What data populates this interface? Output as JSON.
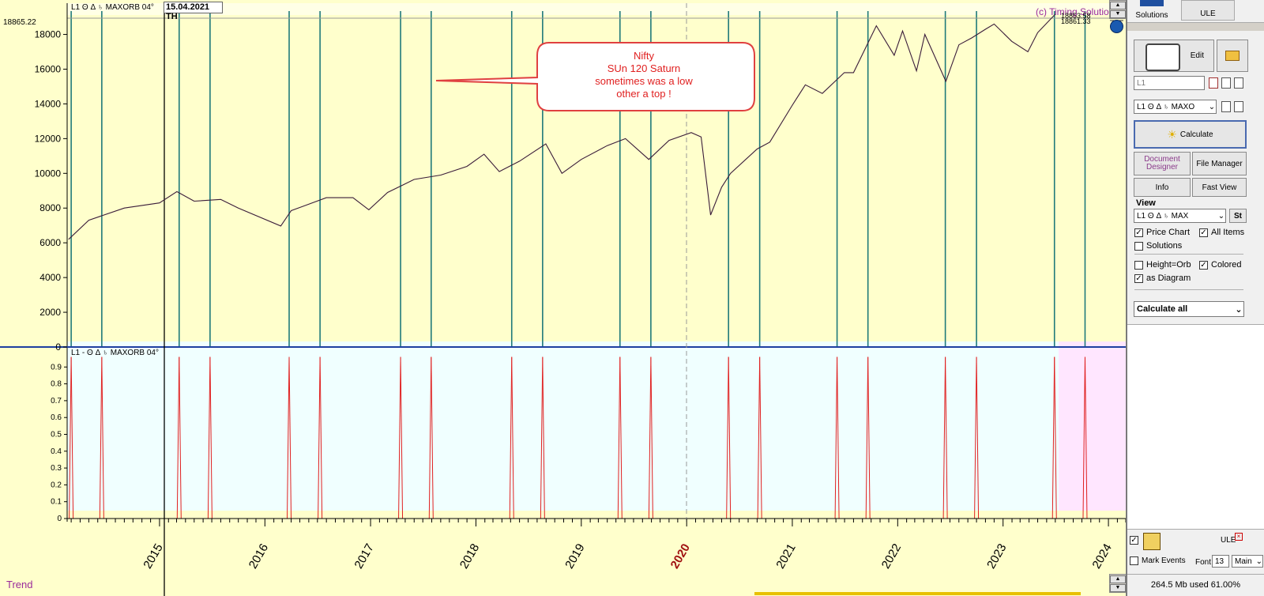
{
  "chart": {
    "header_series_label": "L1  ʘ Δ ♄  MAXORB 04°",
    "header_date": "15.04.2021 TH",
    "current_value": "18865.22",
    "copyright": "(c) Timing Solutio",
    "last_price_labels": [
      "18853.58",
      "18861.33"
    ],
    "annotation_lines": [
      "Nifty",
      "SUn 120 Saturn",
      "sometimes was a low",
      "other a top !"
    ],
    "lower_label": "L1 - ʘ Δ ♄  MAXORB 04°",
    "trend_label": "Trend",
    "highlight_year": "2020"
  },
  "chart_data": [
    {
      "type": "line",
      "title": "Nifty",
      "y_ticks": [
        0,
        2000,
        4000,
        6000,
        8000,
        10000,
        12000,
        14000,
        16000,
        18000
      ],
      "ylim": [
        0,
        19800
      ],
      "x_ticks": [
        "2015",
        "2016",
        "2017",
        "2018",
        "2019",
        "2020",
        "2021",
        "2022",
        "2023",
        "2024"
      ],
      "xlim": [
        "2014-02-15",
        "2024-03-01"
      ],
      "series": [
        {
          "x": [
            "2014-02-20",
            "2014-05-01",
            "2014-09-01",
            "2015-01-01",
            "2015-03-02",
            "2015-05-01",
            "2015-08-01",
            "2015-10-01",
            "2016-02-25",
            "2016-04-01",
            "2016-08-01",
            "2016-11-01",
            "2016-12-26",
            "2017-03-01",
            "2017-06-01",
            "2017-09-01",
            "2017-12-01",
            "2018-01-29",
            "2018-03-23",
            "2018-06-01",
            "2018-08-31",
            "2018-10-26",
            "2019-01-01",
            "2019-04-01",
            "2019-06-03",
            "2019-08-23",
            "2019-11-01",
            "2020-01-17",
            "2020-02-20",
            "2020-03-24",
            "2020-05-01",
            "2020-06-01",
            "2020-09-01",
            "2020-10-15",
            "2020-12-31",
            "2021-02-15",
            "2021-04-15",
            "2021-06-30",
            "2021-08-01",
            "2021-10-19",
            "2021-12-20",
            "2022-01-18",
            "2022-03-07",
            "2022-04-05",
            "2022-06-17",
            "2022-08-01",
            "2022-09-15",
            "2022-11-01",
            "2022-12-01",
            "2023-01-31",
            "2023-03-28",
            "2023-05-01",
            "2023-06-30"
          ],
          "y": [
            6200,
            7300,
            8000,
            8300,
            8950,
            8400,
            8500,
            8000,
            6970,
            7850,
            8600,
            8600,
            7900,
            8900,
            9650,
            9900,
            10400,
            11100,
            10100,
            10700,
            11700,
            10000,
            10800,
            11600,
            12000,
            10800,
            11900,
            12350,
            12100,
            7600,
            9200,
            10000,
            11400,
            11800,
            13900,
            15100,
            14600,
            15800,
            15800,
            18500,
            16800,
            18200,
            15900,
            18000,
            15300,
            17400,
            17800,
            18300,
            18600,
            17600,
            17000,
            18100,
            19150
          ]
        }
      ]
    },
    {
      "type": "line",
      "title": "",
      "y_ticks": [
        0,
        0.1,
        0.2,
        0.3,
        0.4,
        0.5,
        0.6,
        0.7,
        0.8,
        0.9
      ],
      "ylim": [
        0,
        1
      ],
      "event_dates": [
        "2014-03-01",
        "2014-06-15",
        "2015-03-10",
        "2015-06-25",
        "2016-03-25",
        "2016-07-10",
        "2017-04-15",
        "2017-07-30",
        "2018-05-05",
        "2018-08-20",
        "2019-05-15",
        "2019-08-30",
        "2020-05-25",
        "2020-09-10",
        "2021-06-05",
        "2021-09-20",
        "2022-06-15",
        "2022-10-01",
        "2023-06-28",
        "2023-10-12"
      ]
    }
  ],
  "right_panel": {
    "tabs": [
      "Solutions",
      "ULE"
    ],
    "edit_label": "Edit",
    "l1_field": "L1",
    "series_select": "L1  ʘ Δ ♄  MAXO",
    "calculate_label": "Calculate",
    "document_designer": "Document Designer",
    "file_manager": "File Manager",
    "info": "Info",
    "fast_view": "Fast View",
    "view_label": "View",
    "view_select": "L1  ʘ Δ ♄  MAX",
    "st_label": "St",
    "price_chart": "Price Chart",
    "all_items": "All Items",
    "solutions": "Solutions",
    "height_orb": "Height=Orb",
    "colored": "Colored",
    "as_diagram": "as Diagram",
    "calculate_all": "Calculate all",
    "ule_label": "ULE",
    "mark_events": "Mark Events",
    "font_label": "Font",
    "font_size": "13",
    "main_select": "Main",
    "memory": "264.5 Mb used 61.00%"
  }
}
